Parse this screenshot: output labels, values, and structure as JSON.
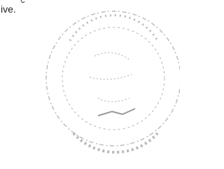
{
  "document": {
    "text_fragment": "ive."
  }
}
